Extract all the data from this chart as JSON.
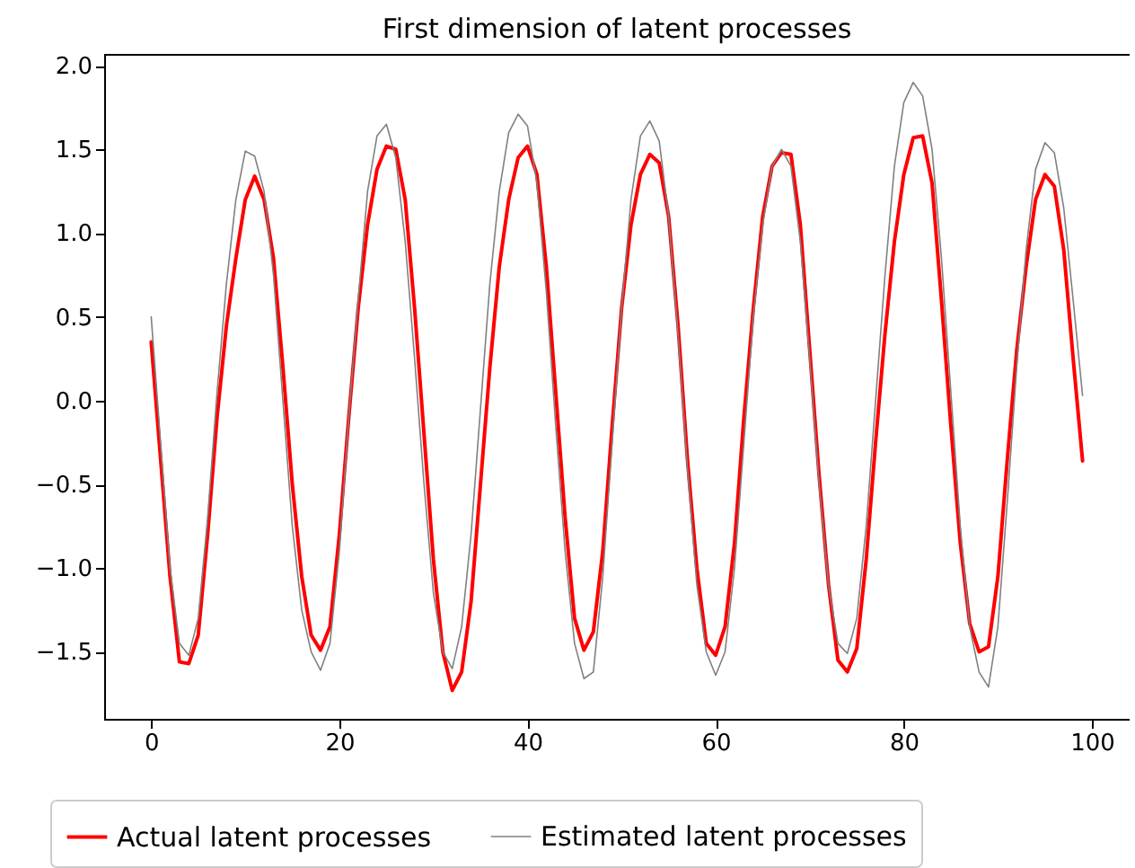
{
  "chart_data": {
    "type": "line",
    "title": "First dimension of latent processes",
    "x": [
      0,
      1,
      2,
      3,
      4,
      5,
      6,
      7,
      8,
      9,
      10,
      11,
      12,
      13,
      14,
      15,
      16,
      17,
      18,
      19,
      20,
      21,
      22,
      23,
      24,
      25,
      26,
      27,
      28,
      29,
      30,
      31,
      32,
      33,
      34,
      35,
      36,
      37,
      38,
      39,
      40,
      41,
      42,
      43,
      44,
      45,
      46,
      47,
      48,
      49,
      50,
      51,
      52,
      53,
      54,
      55,
      56,
      57,
      58,
      59,
      60,
      61,
      62,
      63,
      64,
      65,
      66,
      67,
      68,
      69,
      70,
      71,
      72,
      73,
      74,
      75,
      76,
      77,
      78,
      79,
      80,
      81,
      82,
      83,
      84,
      85,
      86,
      87,
      88,
      89,
      90,
      91,
      92,
      93,
      94,
      95,
      96,
      97,
      98,
      99
    ],
    "series": [
      {
        "name": "Actual latent processes",
        "color": "#ff0000",
        "values": [
          0.35,
          -0.35,
          -1.05,
          -1.56,
          -1.57,
          -1.4,
          -0.8,
          -0.1,
          0.45,
          0.85,
          1.2,
          1.34,
          1.2,
          0.85,
          0.2,
          -0.5,
          -1.05,
          -1.4,
          -1.49,
          -1.35,
          -0.8,
          -0.1,
          0.55,
          1.05,
          1.38,
          1.52,
          1.5,
          1.2,
          0.55,
          -0.2,
          -0.95,
          -1.5,
          -1.73,
          -1.62,
          -1.2,
          -0.5,
          0.2,
          0.8,
          1.2,
          1.45,
          1.52,
          1.35,
          0.8,
          0.05,
          -0.7,
          -1.3,
          -1.49,
          -1.38,
          -0.9,
          -0.15,
          0.55,
          1.05,
          1.35,
          1.47,
          1.42,
          1.1,
          0.45,
          -0.35,
          -1.0,
          -1.45,
          -1.52,
          -1.35,
          -0.85,
          -0.1,
          0.55,
          1.1,
          1.4,
          1.48,
          1.47,
          1.05,
          0.3,
          -0.45,
          -1.1,
          -1.55,
          -1.62,
          -1.48,
          -0.95,
          -0.25,
          0.4,
          0.95,
          1.35,
          1.57,
          1.58,
          1.3,
          0.6,
          -0.15,
          -0.85,
          -1.33,
          -1.5,
          -1.47,
          -1.05,
          -0.35,
          0.3,
          0.8,
          1.2,
          1.35,
          1.28,
          0.9,
          0.25,
          -0.36
        ]
      },
      {
        "name": "Estimated latent processes",
        "color": "#808080",
        "values": [
          0.5,
          -0.25,
          -1.0,
          -1.45,
          -1.52,
          -1.3,
          -0.7,
          0.05,
          0.7,
          1.2,
          1.49,
          1.46,
          1.25,
          0.75,
          0.0,
          -0.75,
          -1.25,
          -1.5,
          -1.61,
          -1.45,
          -0.9,
          -0.1,
          0.6,
          1.25,
          1.58,
          1.65,
          1.45,
          0.95,
          0.25,
          -0.5,
          -1.15,
          -1.5,
          -1.6,
          -1.35,
          -0.8,
          -0.05,
          0.7,
          1.25,
          1.6,
          1.71,
          1.64,
          1.3,
          0.65,
          -0.15,
          -0.9,
          -1.45,
          -1.66,
          -1.62,
          -1.05,
          -0.25,
          0.55,
          1.2,
          1.58,
          1.67,
          1.55,
          1.1,
          0.4,
          -0.4,
          -1.1,
          -1.5,
          -1.64,
          -1.5,
          -1.0,
          -0.25,
          0.5,
          1.05,
          1.4,
          1.5,
          1.4,
          0.95,
          0.25,
          -0.5,
          -1.1,
          -1.45,
          -1.51,
          -1.3,
          -0.75,
          0.0,
          0.75,
          1.4,
          1.78,
          1.9,
          1.82,
          1.5,
          0.85,
          0.05,
          -0.75,
          -1.35,
          -1.62,
          -1.71,
          -1.35,
          -0.6,
          0.2,
          0.9,
          1.38,
          1.54,
          1.48,
          1.15,
          0.6,
          0.03
        ]
      }
    ],
    "xlim": [
      -5,
      104
    ],
    "xticks": [
      0,
      20,
      40,
      60,
      80,
      100
    ],
    "ylim": [
      -1.9,
      2.07
    ],
    "yticks": [
      {
        "value": -1.5,
        "label": "−1.5"
      },
      {
        "value": -1.0,
        "label": "−1.0"
      },
      {
        "value": -0.5,
        "label": "−0.5"
      },
      {
        "value": 0,
        "label": "0.0"
      },
      {
        "value": 0.5,
        "label": "0.5"
      },
      {
        "value": 1.0,
        "label": "1.0"
      },
      {
        "value": 1.5,
        "label": "1.5"
      },
      {
        "value": 2.0,
        "label": "2.0"
      }
    ],
    "legend": "bottom",
    "grid": false
  }
}
